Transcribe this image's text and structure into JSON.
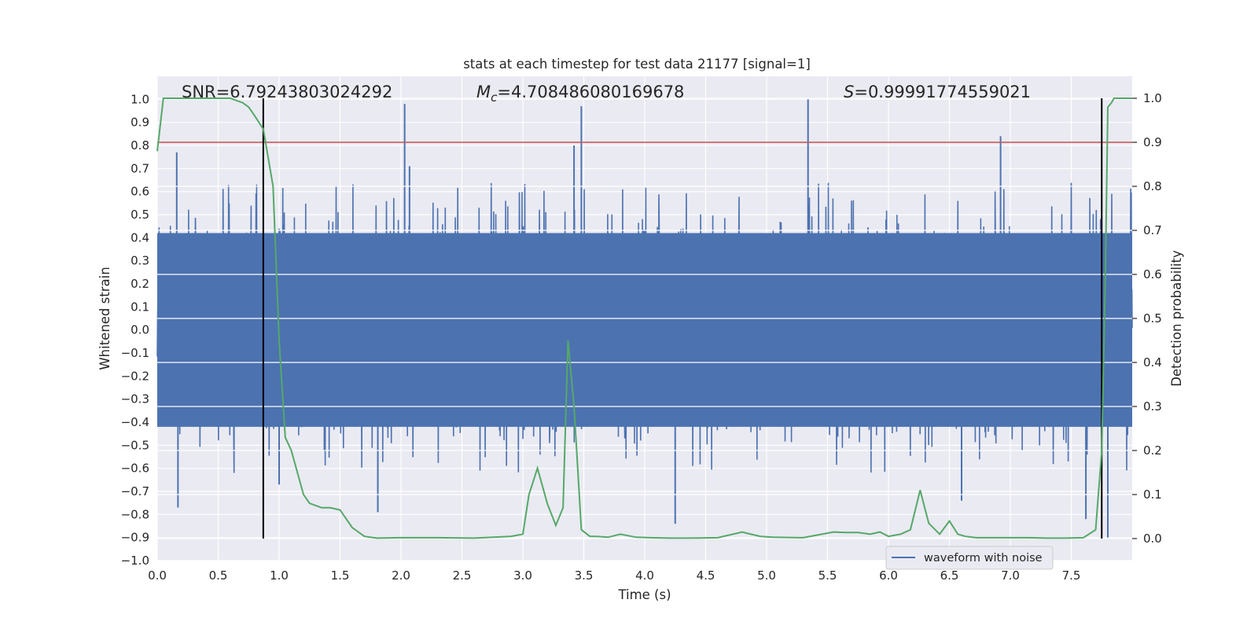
{
  "chart_data": {
    "type": "line",
    "title": "stats at each timestep for test data 21177 [signal=1]",
    "xlabel": "Time (s)",
    "ylabel_left": "Whitened strain",
    "ylabel_right": "Detection probability",
    "xlim": [
      0.0,
      8.0
    ],
    "ylim_left": [
      -1.0,
      1.1
    ],
    "ylim_right": [
      -0.05,
      1.05
    ],
    "x_ticks": [
      "0.0",
      "0.5",
      "1.0",
      "1.5",
      "2.0",
      "2.5",
      "3.0",
      "3.5",
      "4.0",
      "4.5",
      "5.0",
      "5.5",
      "6.0",
      "6.5",
      "7.0",
      "7.5"
    ],
    "y_ticks_left": [
      "-1.0",
      "-0.9",
      "-0.8",
      "-0.7",
      "-0.6",
      "-0.5",
      "-0.4",
      "-0.3",
      "-0.2",
      "-0.1",
      "0.0",
      "0.1",
      "0.2",
      "0.3",
      "0.4",
      "0.5",
      "0.6",
      "0.7",
      "0.8",
      "0.9",
      "1.0"
    ],
    "y_ticks_right": [
      "0.0",
      "0.1",
      "0.2",
      "0.3",
      "0.4",
      "0.5",
      "0.6",
      "0.7",
      "0.8",
      "0.9",
      "1.0"
    ],
    "grid": true,
    "annotations": {
      "snr": "SNR=6.79243803024292",
      "mc_symbol": "M",
      "mc_sub": "c",
      "mc_value": "=4.708486080169678",
      "s_symbol": "S",
      "s_value": "=0.99991774559021"
    },
    "threshold_line": {
      "axis": "right",
      "y": 0.9,
      "color": "#c44e52"
    },
    "vertical_markers_x": [
      0.87,
      7.75
    ],
    "series": [
      {
        "name": "waveform with noise",
        "axis": "left",
        "color": "#4c72b0",
        "kind": "noise",
        "typical_band": [
          -0.42,
          0.42
        ],
        "peak_spikes": [
          {
            "x": 2.03,
            "y": 0.98
          },
          {
            "x": 3.48,
            "y": 0.97
          },
          {
            "x": 5.34,
            "y": 1.0
          },
          {
            "x": 6.92,
            "y": 0.84
          },
          {
            "x": 0.16,
            "y": 0.77
          },
          {
            "x": 2.07,
            "y": 0.71
          },
          {
            "x": 3.42,
            "y": 0.8
          }
        ],
        "trough_spikes": [
          {
            "x": 0.17,
            "y": -0.77
          },
          {
            "x": 1.81,
            "y": -0.79
          },
          {
            "x": 4.25,
            "y": -0.84
          },
          {
            "x": 7.62,
            "y": -0.82
          },
          {
            "x": 7.8,
            "y": -0.9
          },
          {
            "x": 1.0,
            "y": -0.67
          },
          {
            "x": 6.6,
            "y": -0.74
          }
        ]
      },
      {
        "name": "Detection probability",
        "axis": "right",
        "color": "#55a868",
        "x": [
          0.0,
          0.05,
          0.1,
          0.2,
          0.3,
          0.4,
          0.5,
          0.6,
          0.7,
          0.75,
          0.8,
          0.87,
          0.95,
          1.0,
          1.05,
          1.1,
          1.2,
          1.25,
          1.35,
          1.42,
          1.5,
          1.6,
          1.7,
          1.8,
          2.0,
          2.3,
          2.6,
          2.9,
          3.0,
          3.05,
          3.12,
          3.2,
          3.27,
          3.33,
          3.37,
          3.42,
          3.48,
          3.55,
          3.6,
          3.7,
          3.8,
          3.93,
          4.05,
          4.2,
          4.35,
          4.6,
          4.8,
          4.87,
          4.95,
          5.05,
          5.3,
          5.55,
          5.65,
          5.75,
          5.85,
          5.93,
          6.0,
          6.1,
          6.18,
          6.26,
          6.33,
          6.42,
          6.5,
          6.57,
          6.63,
          6.72,
          6.85,
          7.0,
          7.15,
          7.3,
          7.45,
          7.6,
          7.7,
          7.75,
          7.78,
          7.8,
          7.83,
          7.85,
          7.9,
          7.95,
          8.0
        ],
        "y": [
          0.88,
          1.0,
          1.0,
          1.0,
          1.0,
          1.0,
          1.0,
          1.0,
          0.99,
          0.98,
          0.96,
          0.93,
          0.8,
          0.45,
          0.23,
          0.2,
          0.1,
          0.08,
          0.07,
          0.07,
          0.065,
          0.025,
          0.005,
          0.001,
          0.002,
          0.002,
          0.001,
          0.005,
          0.01,
          0.1,
          0.16,
          0.08,
          0.03,
          0.07,
          0.45,
          0.3,
          0.02,
          0.005,
          0.005,
          0.003,
          0.01,
          0.003,
          0.002,
          0.001,
          0.001,
          0.002,
          0.015,
          0.01,
          0.005,
          0.003,
          0.002,
          0.015,
          0.014,
          0.014,
          0.01,
          0.015,
          0.005,
          0.01,
          0.02,
          0.11,
          0.035,
          0.01,
          0.04,
          0.01,
          0.005,
          0.002,
          0.002,
          0.002,
          0.002,
          0.001,
          0.001,
          0.002,
          0.02,
          0.2,
          0.6,
          0.98,
          0.99,
          1.0,
          1.0,
          1.0,
          1.0
        ]
      }
    ],
    "legend": {
      "entries": [
        "waveform with noise"
      ],
      "placement": "lower-right"
    }
  }
}
